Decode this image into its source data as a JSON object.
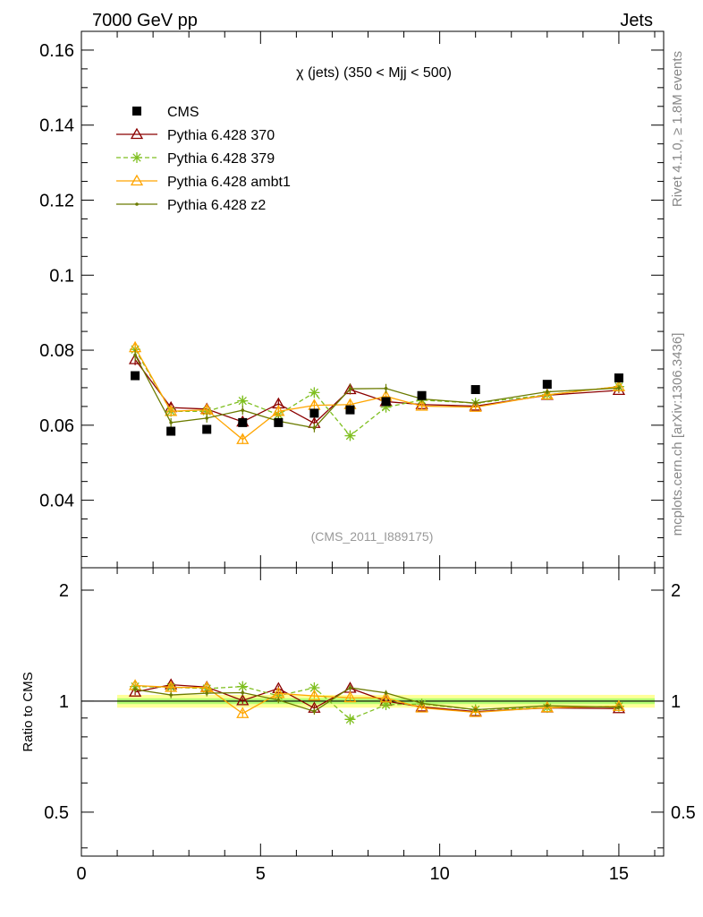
{
  "header": {
    "left": "7000 GeV pp",
    "right": "Jets"
  },
  "side_labels": {
    "rivet": "Rivet 4.1.0, ≥ 1.8M events",
    "mcplots": "mcplots.cern.ch [arXiv:1306.3436]"
  },
  "chart_data": {
    "type": "line",
    "title": "χ (jets) (350 < Mjj <  500)",
    "analysis": "(CMS_2011_I889175)",
    "xlabel": "",
    "ylabel_main": "",
    "ylabel_ratio": "Ratio to CMS",
    "xlim": [
      0,
      16.25
    ],
    "ylim": [
      0.022,
      0.165
    ],
    "ratio_ylim": [
      0.38,
      2.3
    ],
    "x_ticks": [
      0,
      5,
      10,
      15
    ],
    "x_tick_labels": [
      "0",
      "5",
      "10",
      "15"
    ],
    "y_ticks": [
      0.04,
      0.06,
      0.08,
      0.1,
      0.12,
      0.14,
      0.16
    ],
    "y_tick_labels": [
      "0.04",
      "0.06",
      "0.08",
      "0.1",
      "0.12",
      "0.14",
      "0.16"
    ],
    "ratio_ticks": [
      0.5,
      1,
      2
    ],
    "ratio_tick_labels": [
      "0.5",
      "1",
      "2"
    ],
    "bin_edges": [
      1,
      2,
      3,
      4,
      5,
      6,
      7,
      8,
      9,
      10,
      12,
      14,
      16
    ],
    "x": [
      1.5,
      2.5,
      3.5,
      4.5,
      5.5,
      6.5,
      7.5,
      8.5,
      9.5,
      11,
      13,
      15
    ],
    "data": {
      "name": "CMS",
      "values": [
        0.0732,
        0.0584,
        0.0589,
        0.0607,
        0.0607,
        0.0632,
        0.0641,
        0.0663,
        0.0679,
        0.0695,
        0.0709,
        0.0726
      ],
      "errors": [
        0.0006,
        0.0006,
        0.0006,
        0.0006,
        0.0006,
        0.0006,
        0.0006,
        0.0006,
        0.0006,
        0.0006,
        0.0006,
        0.0006
      ]
    },
    "series": [
      {
        "name": "Pythia 6.428 370",
        "color": "#8b0000",
        "marker": "triangle-open",
        "dash": "solid",
        "values": [
          0.0775,
          0.0647,
          0.0643,
          0.0609,
          0.0657,
          0.0605,
          0.0695,
          0.0663,
          0.0655,
          0.0651,
          0.068,
          0.0693
        ],
        "errors": [
          0.0015,
          0.0012,
          0.0012,
          0.0012,
          0.0012,
          0.0012,
          0.0013,
          0.0012,
          0.0008,
          0.0007,
          0.0007,
          0.0007
        ]
      },
      {
        "name": "Pythia 6.428 379",
        "color": "#7fbf20",
        "marker": "star",
        "dash": "dashed",
        "values": [
          0.0802,
          0.0637,
          0.0637,
          0.0665,
          0.0628,
          0.0687,
          0.0572,
          0.0648,
          0.0667,
          0.0659,
          0.0681,
          0.0703
        ],
        "errors": [
          0.0015,
          0.0012,
          0.0012,
          0.0012,
          0.0012,
          0.0012,
          0.0013,
          0.0012,
          0.0008,
          0.0007,
          0.0007,
          0.0007
        ]
      },
      {
        "name": "Pythia 6.428 ambt1",
        "color": "#ffa500",
        "marker": "triangle-open",
        "dash": "solid",
        "values": [
          0.0807,
          0.0637,
          0.0641,
          0.0562,
          0.0637,
          0.0653,
          0.0655,
          0.0677,
          0.0651,
          0.0648,
          0.0681,
          0.0703
        ],
        "errors": [
          0.0015,
          0.0012,
          0.0012,
          0.0012,
          0.0012,
          0.0012,
          0.0013,
          0.0012,
          0.0008,
          0.0007,
          0.0007,
          0.0007
        ]
      },
      {
        "name": "Pythia 6.428 z2",
        "color": "#6b7b00",
        "marker": "dot",
        "dash": "solid",
        "values": [
          0.0787,
          0.0607,
          0.0619,
          0.064,
          0.0611,
          0.0593,
          0.0697,
          0.0698,
          0.067,
          0.0659,
          0.0689,
          0.0699
        ],
        "errors": [
          0.0015,
          0.0012,
          0.0012,
          0.0012,
          0.0012,
          0.0012,
          0.0013,
          0.0012,
          0.0008,
          0.0007,
          0.0007,
          0.0007
        ]
      }
    ],
    "legend": [
      "CMS",
      "Pythia 6.428 370",
      "Pythia 6.428 379",
      "Pythia 6.428 ambt1",
      "Pythia 6.428 z2"
    ],
    "legend_position": "top-left",
    "grid": false
  }
}
